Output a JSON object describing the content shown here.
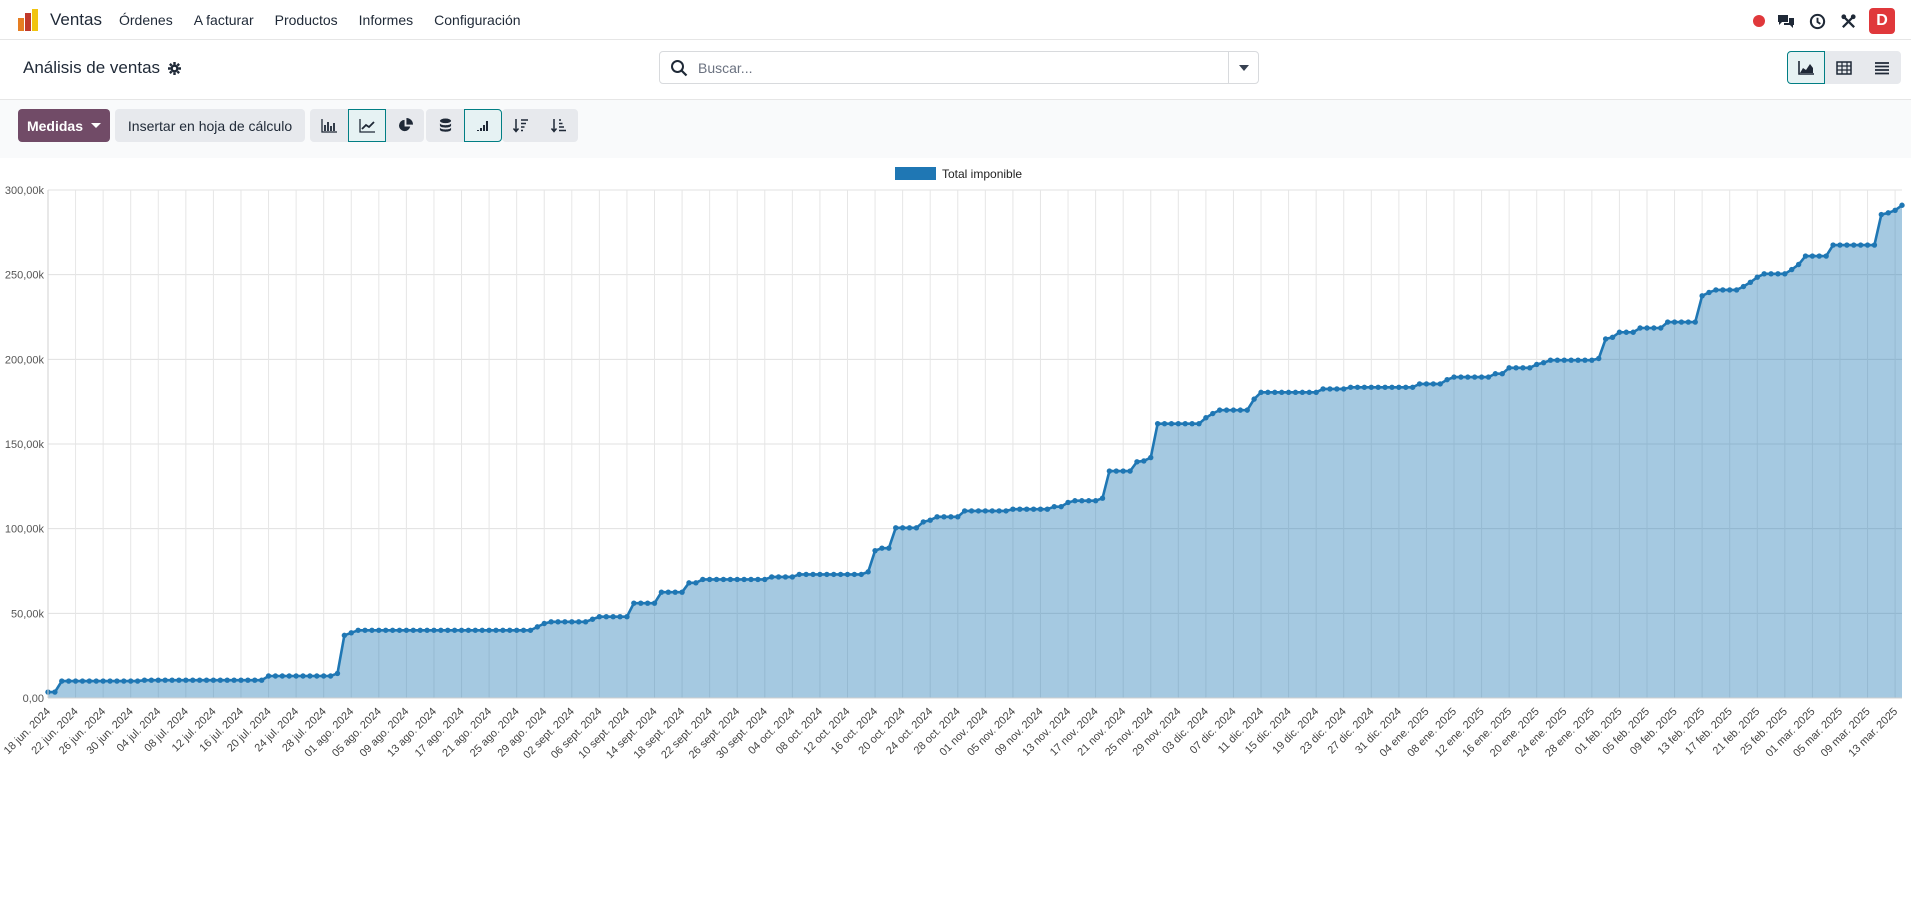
{
  "app": {
    "name": "Ventas",
    "menu": [
      "Órdenes",
      "A facturar",
      "Productos",
      "Informes",
      "Configuración"
    ],
    "avatar_letter": "D",
    "colors": {
      "brand": "#714b67",
      "accent": "#017e84",
      "danger": "#e0383b",
      "series": "#1f77b4"
    }
  },
  "control_panel": {
    "title": "Análisis de ventas",
    "search_placeholder": "Buscar...",
    "measures_label": "Medidas",
    "insert_label": "Insertar en hoja de cálculo",
    "active_view": "graph",
    "active_chart_type": "line",
    "cumulative": true
  },
  "chart_data": {
    "type": "area",
    "legend": [
      "Total imponible"
    ],
    "legend_position": "top-center",
    "grid": true,
    "ylim": [
      0,
      300000
    ],
    "yticks": [
      "0,00",
      "50,00k",
      "100,00k",
      "150,00k",
      "200,00k",
      "250,00k",
      "300,00k"
    ],
    "start_date": "18 jun. 2024",
    "end_date": "14 mar. 2025",
    "xticks": [
      "18 jun. 2024",
      "22 jun. 2024",
      "26 jun. 2024",
      "30 jun. 2024",
      "04 jul. 2024",
      "08 jul. 2024",
      "12 jul. 2024",
      "16 jul. 2024",
      "20 jul. 2024",
      "24 jul. 2024",
      "28 jul. 2024",
      "01 ago. 2024",
      "05 ago. 2024",
      "09 ago. 2024",
      "13 ago. 2024",
      "17 ago. 2024",
      "21 ago. 2024",
      "25 ago. 2024",
      "29 ago. 2024",
      "02 sept. 2024",
      "06 sept. 2024",
      "10 sept. 2024",
      "14 sept. 2024",
      "18 sept. 2024",
      "22 sept. 2024",
      "26 sept. 2024",
      "30 sept. 2024",
      "04 oct. 2024",
      "08 oct. 2024",
      "12 oct. 2024",
      "16 oct. 2024",
      "20 oct. 2024",
      "24 oct. 2024",
      "28 oct. 2024",
      "01 nov. 2024",
      "05 nov. 2024",
      "09 nov. 2024",
      "13 nov. 2024",
      "17 nov. 2024",
      "21 nov. 2024",
      "25 nov. 2024",
      "29 nov. 2024",
      "03 dic. 2024",
      "07 dic. 2024",
      "11 dic. 2024",
      "15 dic. 2024",
      "19 dic. 2024",
      "23 dic. 2024",
      "27 dic. 2024",
      "31 dic. 2024",
      "04 ene. 2025",
      "08 ene. 2025",
      "12 ene. 2025",
      "16 ene. 2025",
      "20 ene. 2025",
      "24 ene. 2025",
      "28 ene. 2025",
      "01 feb. 2025",
      "05 feb. 2025",
      "09 feb. 2025",
      "13 feb. 2025",
      "17 feb. 2025",
      "21 feb. 2025",
      "25 feb. 2025",
      "01 mar. 2025",
      "05 mar. 2025",
      "09 mar. 2025",
      "13 mar. 2025"
    ],
    "series": [
      {
        "name": "Total imponible",
        "steps": [
          [
            "18 jun. 2024",
            3500
          ],
          [
            "20 jun. 2024",
            10000
          ],
          [
            "02 jul. 2024",
            10500
          ],
          [
            "20 jul. 2024",
            13000
          ],
          [
            "30 jul. 2024",
            14500
          ],
          [
            "31 jul. 2024",
            37000
          ],
          [
            "01 ago. 2024",
            38500
          ],
          [
            "02 ago. 2024",
            40000
          ],
          [
            "28 ago. 2024",
            42000
          ],
          [
            "29 ago. 2024",
            44000
          ],
          [
            "30 ago. 2024",
            45000
          ],
          [
            "05 sept. 2024",
            46500
          ],
          [
            "06 sept. 2024",
            48000
          ],
          [
            "11 sept. 2024",
            56000
          ],
          [
            "15 sept. 2024",
            62500
          ],
          [
            "19 sept. 2024",
            68000
          ],
          [
            "21 sept. 2024",
            70000
          ],
          [
            "01 oct. 2024",
            71500
          ],
          [
            "05 oct. 2024",
            73000
          ],
          [
            "15 oct. 2024",
            74500
          ],
          [
            "16 oct. 2024",
            87000
          ],
          [
            "17 oct. 2024",
            88500
          ],
          [
            "19 oct. 2024",
            100500
          ],
          [
            "23 oct. 2024",
            104000
          ],
          [
            "24 oct. 2024",
            105000
          ],
          [
            "25 oct. 2024",
            107000
          ],
          [
            "29 oct. 2024",
            110500
          ],
          [
            "05 nov. 2024",
            111500
          ],
          [
            "11 nov. 2024",
            113000
          ],
          [
            "13 nov. 2024",
            115500
          ],
          [
            "14 nov. 2024",
            116500
          ],
          [
            "18 nov. 2024",
            118000
          ],
          [
            "19 nov. 2024",
            134000
          ],
          [
            "23 nov. 2024",
            139500
          ],
          [
            "24 nov. 2024",
            140000
          ],
          [
            "25 nov. 2024",
            142000
          ],
          [
            "26 nov. 2024",
            162000
          ],
          [
            "03 dic. 2024",
            165500
          ],
          [
            "04 dic. 2024",
            168000
          ],
          [
            "05 dic. 2024",
            170000
          ],
          [
            "10 dic. 2024",
            176500
          ],
          [
            "11 dic. 2024",
            180500
          ],
          [
            "20 dic. 2024",
            182500
          ],
          [
            "24 dic. 2024",
            183500
          ],
          [
            "03 ene. 2025",
            185500
          ],
          [
            "07 ene. 2025",
            188000
          ],
          [
            "08 ene. 2025",
            189500
          ],
          [
            "14 ene. 2025",
            191500
          ],
          [
            "16 ene. 2025",
            195000
          ],
          [
            "20 ene. 2025",
            197000
          ],
          [
            "21 ene. 2025",
            198000
          ],
          [
            "22 ene. 2025",
            199500
          ],
          [
            "29 ene. 2025",
            200500
          ],
          [
            "30 ene. 2025",
            212000
          ],
          [
            "31 ene. 2025",
            213000
          ],
          [
            "01 feb. 2025",
            216000
          ],
          [
            "04 feb. 2025",
            218500
          ],
          [
            "08 feb. 2025",
            222000
          ],
          [
            "13 feb. 2025",
            237500
          ],
          [
            "14 feb. 2025",
            239500
          ],
          [
            "15 feb. 2025",
            241000
          ],
          [
            "19 feb. 2025",
            243000
          ],
          [
            "20 feb. 2025",
            245500
          ],
          [
            "21 feb. 2025",
            248500
          ],
          [
            "22 feb. 2025",
            250500
          ],
          [
            "26 feb. 2025",
            253000
          ],
          [
            "27 feb. 2025",
            256000
          ],
          [
            "28 feb. 2025",
            261000
          ],
          [
            "04 mar. 2025",
            267500
          ],
          [
            "11 mar. 2025",
            285500
          ],
          [
            "12 mar. 2025",
            286500
          ],
          [
            "13 mar. 2025",
            288000
          ],
          [
            "14 mar. 2025",
            291000
          ]
        ]
      }
    ]
  }
}
